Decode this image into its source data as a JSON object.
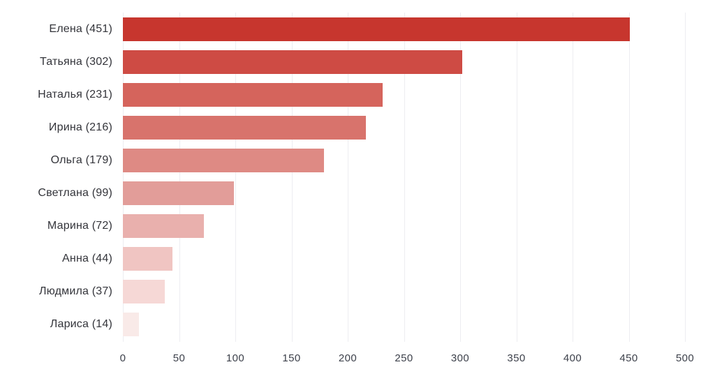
{
  "chart_data": {
    "type": "bar",
    "orientation": "horizontal",
    "title": "",
    "xlabel": "",
    "ylabel": "",
    "xlim": [
      0,
      500
    ],
    "grid": true,
    "legend": false,
    "categories": [
      "Елена",
      "Татьяна",
      "Наталья",
      "Ирина",
      "Ольга",
      "Светлана",
      "Марина",
      "Анна",
      "Людмила",
      "Лариса"
    ],
    "values": [
      451,
      302,
      231,
      216,
      179,
      99,
      72,
      44,
      37,
      14
    ],
    "labels": [
      "Елена (451)",
      "Татьяна (302)",
      "Наталья (231)",
      "Ирина (216)",
      "Ольга (179)",
      "Светлана (99)",
      "Марина (72)",
      "Анна (44)",
      "Людмила (37)",
      "Лариса (14)"
    ],
    "bar_colors": [
      "#c7362e",
      "#ce4b44",
      "#d5645c",
      "#d8736c",
      "#de8a84",
      "#e29d99",
      "#e9b0ad",
      "#f0c5c2",
      "#f6d8d6",
      "#f9eae8"
    ],
    "x_ticks": [
      0,
      50,
      100,
      150,
      200,
      250,
      300,
      350,
      400,
      450,
      500
    ]
  },
  "style": {
    "gridline_color": "#ededf1",
    "label_color": "#33343a",
    "tick_color": "#3d414b",
    "background": "#ffffff"
  }
}
